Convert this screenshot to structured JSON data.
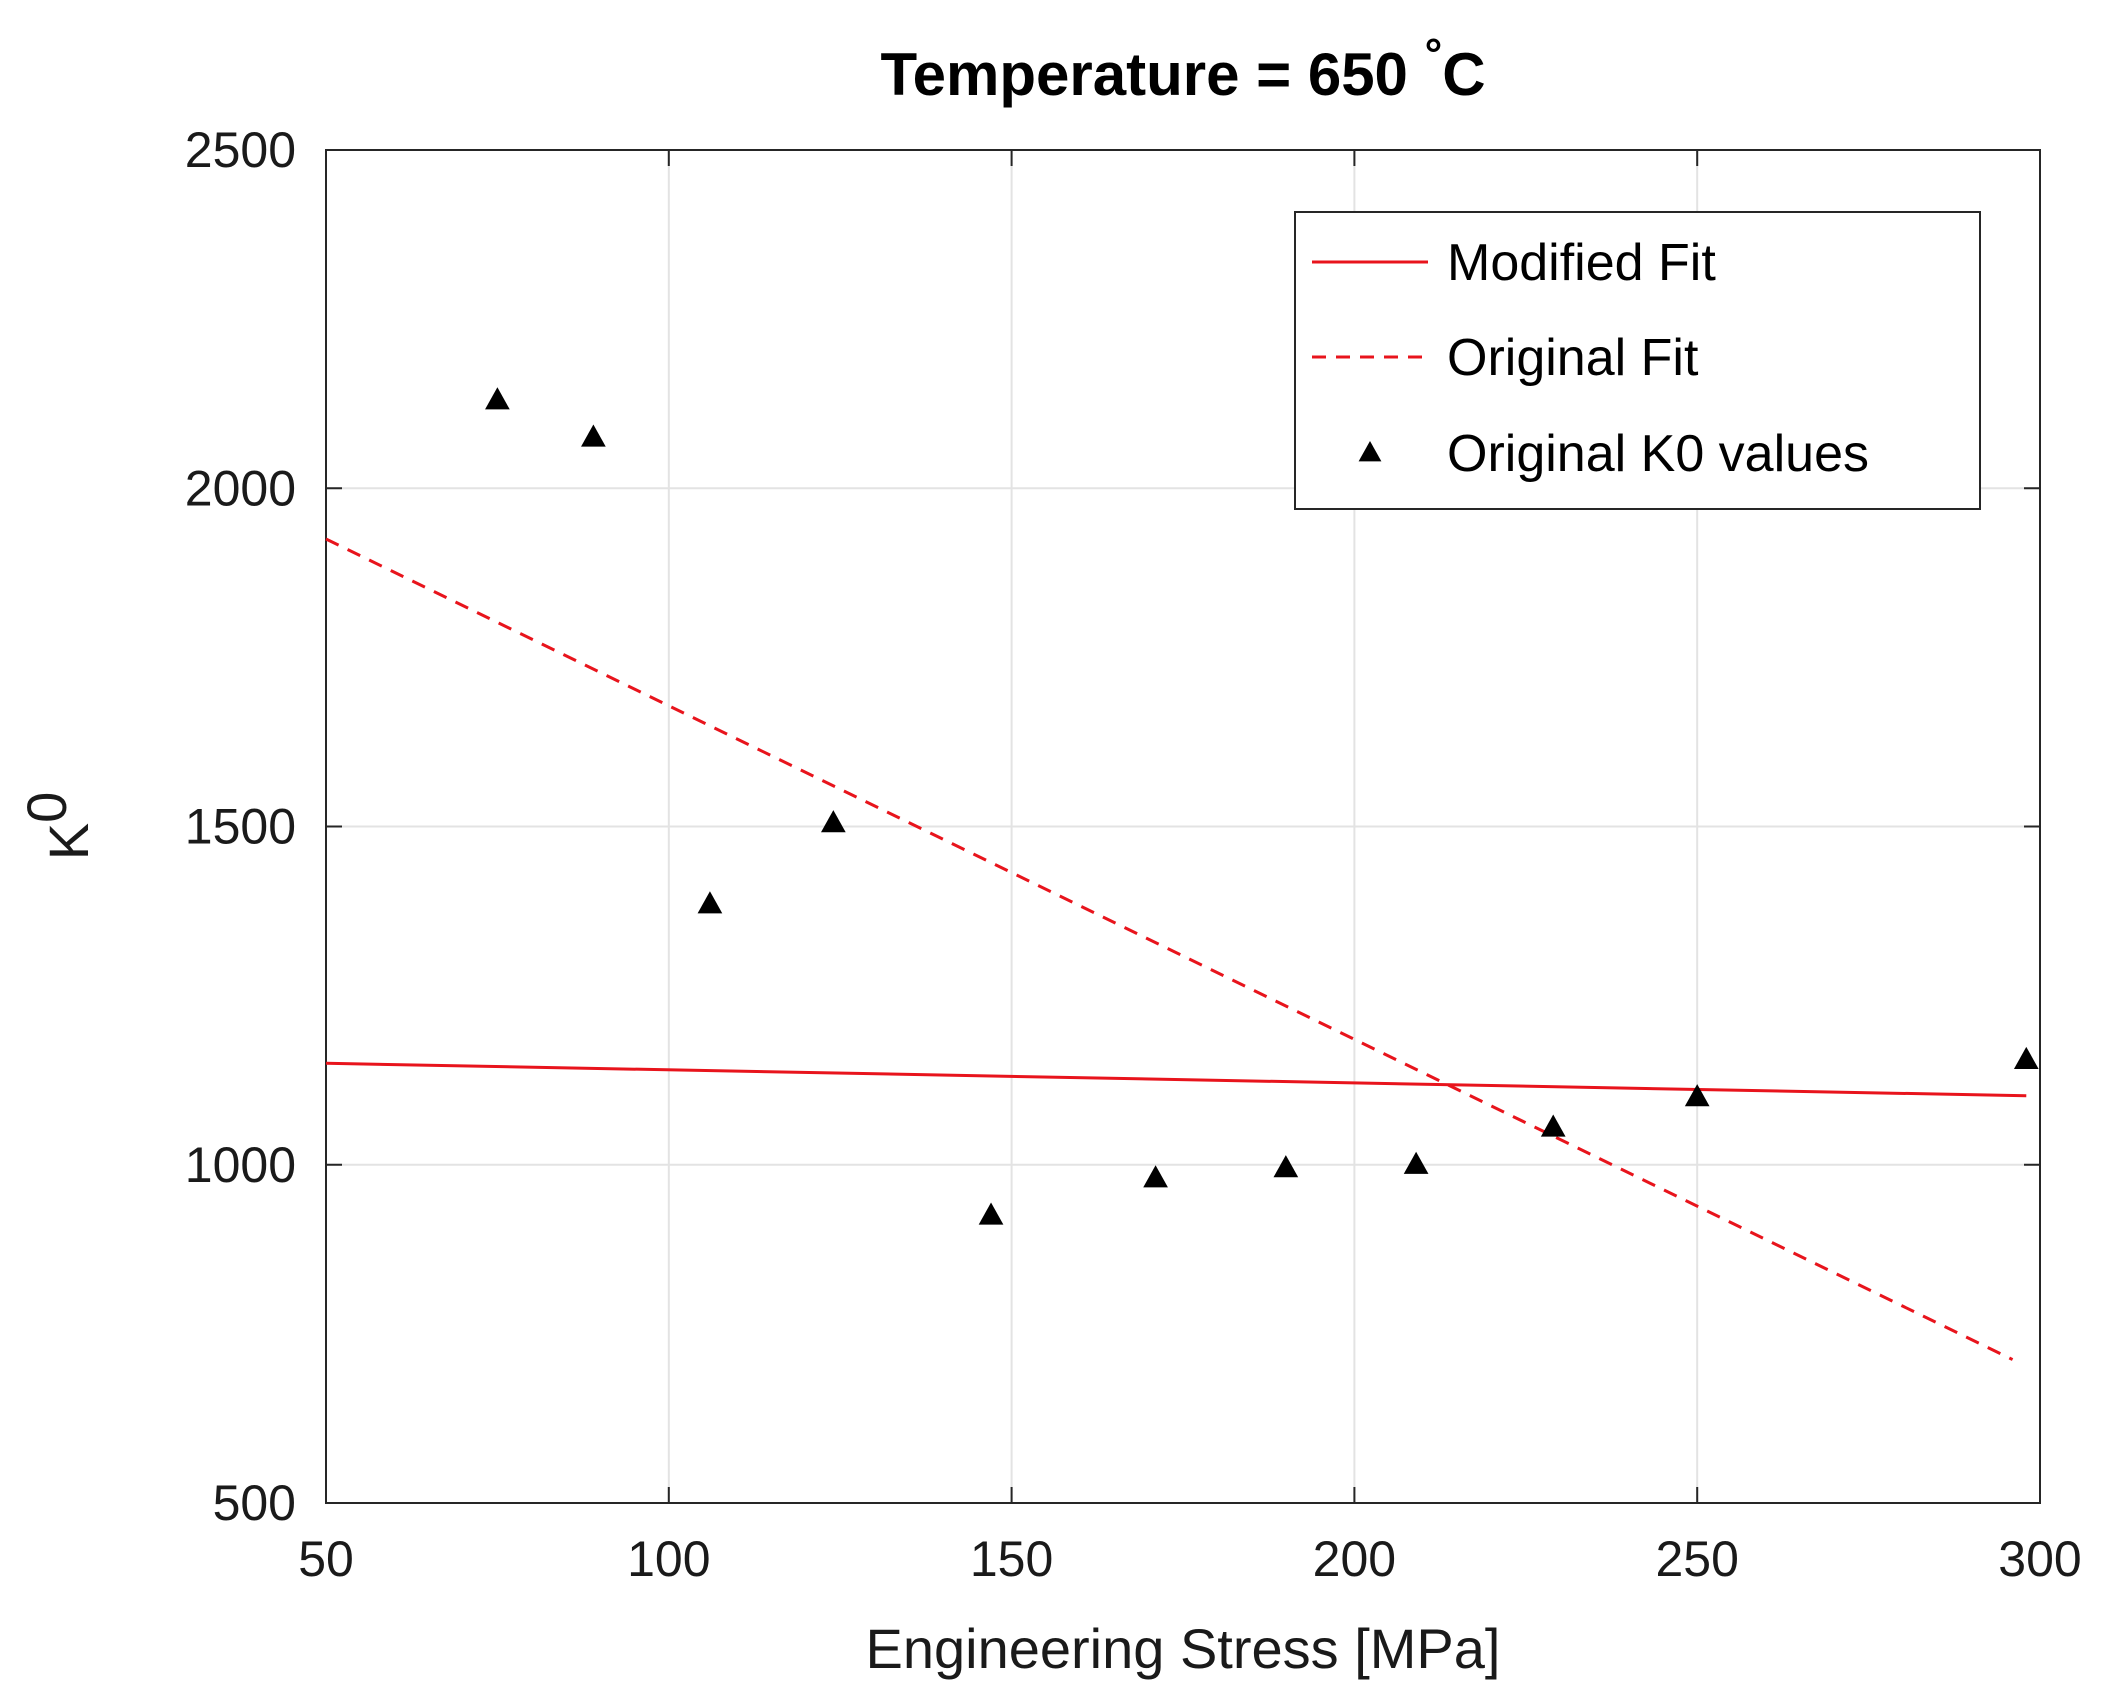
{
  "chart_data": {
    "type": "line",
    "title": "Temperature = 650 °C",
    "title_main": "Temperature = 650 ",
    "title_degree": "°",
    "title_unit": "C",
    "xlabel": "Engineering Stress [MPa]",
    "ylabel": "K",
    "ylabel_subscript": "0",
    "xlim": [
      50,
      300
    ],
    "ylim": [
      500,
      2500
    ],
    "xticks": [
      50,
      100,
      150,
      200,
      250,
      300
    ],
    "yticks": [
      500,
      1000,
      1500,
      2000,
      2500
    ],
    "grid": true,
    "legend_position": "top-right",
    "series": [
      {
        "name": "Modified Fit",
        "kind": "line",
        "style": "solid",
        "color": "#e8141c",
        "x": [
          50,
          298
        ],
        "y": [
          1150,
          1102
        ]
      },
      {
        "name": "Original Fit",
        "kind": "line",
        "style": "dashed",
        "color": "#e8141c",
        "x": [
          50,
          296
        ],
        "y": [
          1925,
          712
        ]
      },
      {
        "name": "Original K0 values",
        "kind": "scatter",
        "marker": "triangle",
        "color": "#000000",
        "x": [
          75,
          89,
          106,
          124,
          147,
          171,
          190,
          209,
          229,
          250,
          298
        ],
        "y": [
          2130,
          2075,
          1385,
          1505,
          925,
          980,
          995,
          1000,
          1055,
          1100,
          1155
        ]
      }
    ]
  }
}
